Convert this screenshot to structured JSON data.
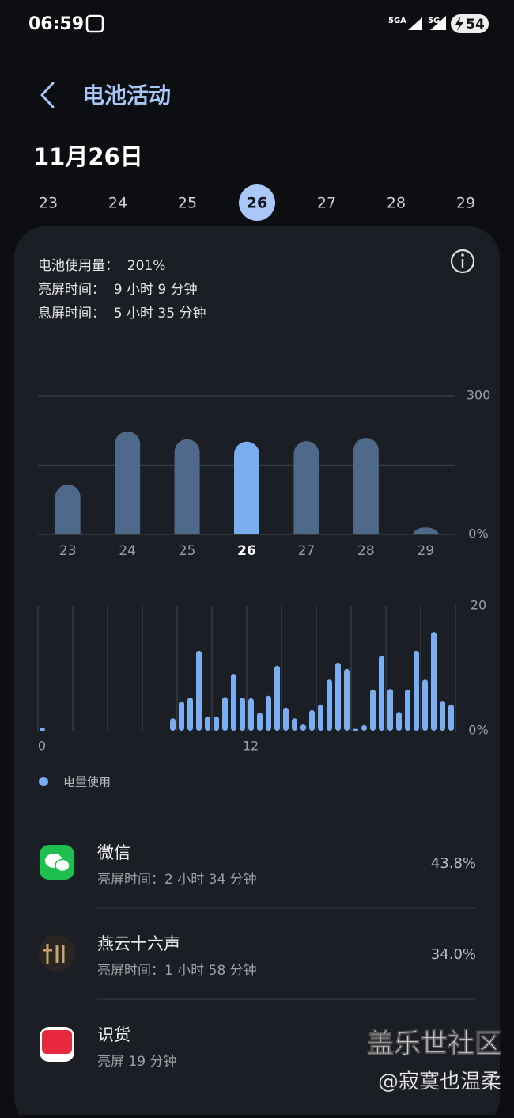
{
  "status_bar": {
    "time": "06:59",
    "network_a": "5GA",
    "network_b": "5G",
    "battery": "54"
  },
  "header": {
    "title": "电池活动"
  },
  "date": "11月26日",
  "day_picker": {
    "days": [
      "23",
      "24",
      "25",
      "26",
      "27",
      "28",
      "29"
    ],
    "selected": 3
  },
  "summary": {
    "lines": [
      "电池使用量：  201%",
      "亮屏时间：  9 小时 9 分钟",
      "息屏时间：  5 小时 35 分钟"
    ]
  },
  "chart_data": [
    {
      "type": "bar",
      "categories": [
        "23",
        "24",
        "25",
        "26",
        "27",
        "28",
        "29"
      ],
      "values": [
        108,
        223,
        206,
        201,
        202,
        209,
        15
      ],
      "color": "#4e6989",
      "highlight_index": 3,
      "highlight_color": "#7aaef0",
      "ylim": [
        0,
        300
      ],
      "yticks": [
        {
          "value": 0,
          "label": "0%"
        },
        {
          "value": 150,
          "label": null
        },
        300
      ],
      "grid": true
    },
    {
      "type": "bar",
      "x": [
        0,
        0.5,
        1,
        1.5,
        2,
        2.5,
        3,
        3.5,
        4,
        4.5,
        5,
        5.5,
        6,
        6.5,
        7,
        7.5,
        8,
        8.5,
        9,
        9.5,
        10,
        10.5,
        11,
        11.5,
        12,
        12.5,
        13,
        13.5,
        14,
        14.5,
        15,
        15.5,
        16,
        16.5,
        17,
        17.5,
        18,
        18.5,
        19,
        19.5,
        20,
        20.5,
        21,
        21.5,
        22,
        22.5,
        23,
        23.5
      ],
      "series": [
        {
          "name": "电量使用",
          "color": "#7aaef0",
          "values": [
            0.4,
            0,
            0,
            0,
            0,
            0,
            0,
            0,
            0,
            0,
            0,
            0,
            0,
            0,
            0,
            2.0,
            4.7,
            5.3,
            12.8,
            2.3,
            2.3,
            5.4,
            9.1,
            5.3,
            5.2,
            2.9,
            5.6,
            10.4,
            3.7,
            2.0,
            1.0,
            3.3,
            4.2,
            8.2,
            10.9,
            9.9,
            0.3,
            0.9,
            6.6,
            12.0,
            6.7,
            3.0,
            6.6,
            12.8,
            8.2,
            15.8,
            4.8,
            4.2
          ]
        }
      ],
      "xlim": [
        0,
        24
      ],
      "xticks": [
        0,
        {
          "value": 2,
          "label": null
        },
        {
          "value": 4,
          "label": null
        },
        {
          "value": 6,
          "label": null
        },
        {
          "value": 8,
          "label": null
        },
        {
          "value": 10,
          "label": null
        },
        12,
        {
          "value": 14,
          "label": null
        },
        {
          "value": 16,
          "label": null
        },
        {
          "value": 18,
          "label": null
        },
        {
          "value": 20,
          "label": null
        },
        {
          "value": 22,
          "label": null
        },
        {
          "value": 24,
          "label": null
        }
      ],
      "ylim": [
        0,
        20
      ],
      "yticks": [
        {
          "value": 0,
          "label": "0%"
        },
        20
      ],
      "grid": true
    }
  ],
  "apps": [
    {
      "name": "微信",
      "detail": "亮屏时间：2 小时 34 分钟",
      "percent": "43.8%"
    },
    {
      "name": "燕云十六声",
      "detail": "亮屏时间：1 小时 58 分钟",
      "percent": "34.0%"
    },
    {
      "name": "识货",
      "detail": "亮屏 19 分钟"
    }
  ],
  "watermark": {
    "title": "盖乐世社区",
    "user": "@寂寞也温柔"
  }
}
